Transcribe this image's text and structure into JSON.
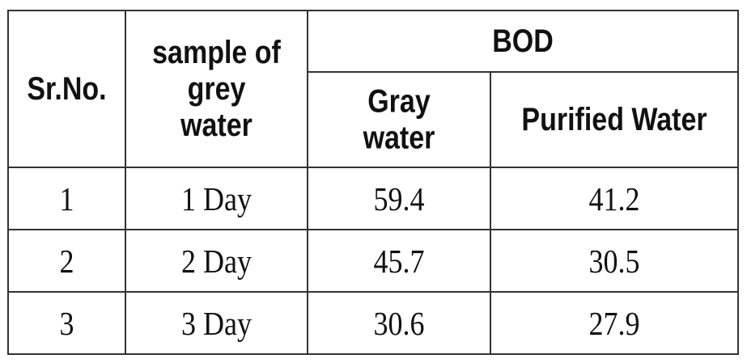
{
  "table": {
    "headers": {
      "sr_no": "Sr.No.",
      "sample_line1": "sample of",
      "sample_line2": "grey",
      "sample_line3": "water",
      "group": "BOD",
      "gray_line1": "Gray",
      "gray_line2": "water",
      "purified": "Purified Water"
    },
    "rows": [
      {
        "sr": "1",
        "sample": "1 Day",
        "gray": "59.4",
        "purified": "41.2"
      },
      {
        "sr": "2",
        "sample": "2 Day",
        "gray": "45.7",
        "purified": "30.5"
      },
      {
        "sr": "3",
        "sample": "3 Day",
        "gray": "30.6",
        "purified": "27.9"
      }
    ]
  }
}
